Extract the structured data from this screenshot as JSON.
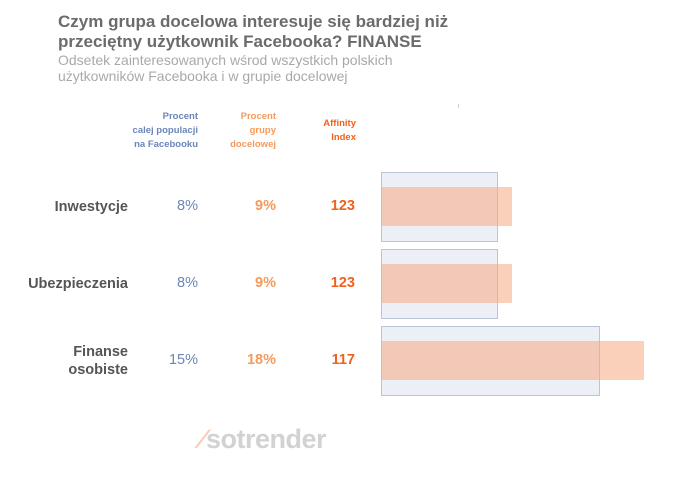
{
  "chart_data": {
    "type": "bar",
    "title": "Czym grupa docelowa interesuje się bardziej niż przeciętny użytkownik Facebooka?",
    "title_tag": "FINANSE",
    "subtitle": "Odsetek zainteresowanych wśrod wszystkich polskich użytkowników Facebooka i w grupie docelowej",
    "column_headers": {
      "population": [
        "Procent",
        "calej populacji",
        "na Facebooku"
      ],
      "target": [
        "Procent",
        "grupy",
        "docelowej"
      ],
      "affinity": [
        "Affinity",
        "Index"
      ]
    },
    "categories": [
      [
        "Inwestycje"
      ],
      [
        "Ubezpieczenia"
      ],
      [
        "Finanse",
        "osobiste"
      ]
    ],
    "series": [
      {
        "name": "Procent calej populacji na Facebooku",
        "values": [
          8,
          8,
          15
        ],
        "labels": [
          "8%",
          "8%",
          "15%"
        ],
        "color": "#6b86b8"
      },
      {
        "name": "Procent grupy docelowej",
        "values": [
          9,
          9,
          18
        ],
        "labels": [
          "9%",
          "9%",
          "18%"
        ],
        "color": "#f59a5c"
      },
      {
        "name": "Affinity Index",
        "values": [
          123,
          123,
          117
        ],
        "labels": [
          "123",
          "123",
          "117"
        ],
        "color": "#f0601e"
      }
    ]
  },
  "logo": "sotrender"
}
